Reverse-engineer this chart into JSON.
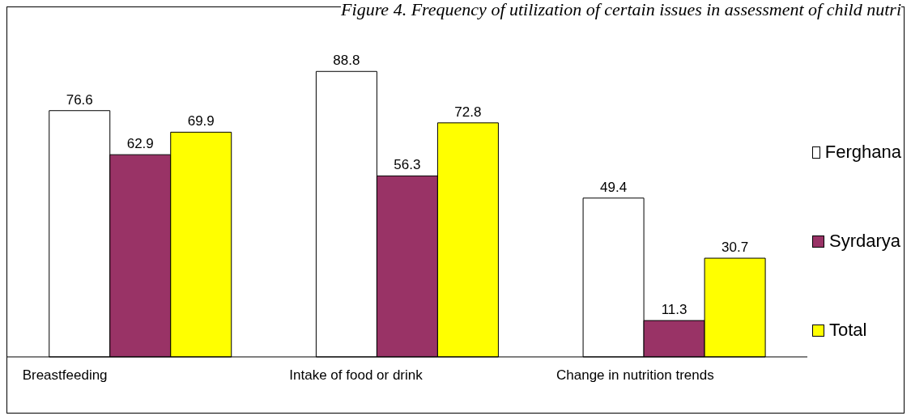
{
  "chart_data": {
    "type": "bar",
    "title": "Figure 4. Frequency of utilization of certain issues in assessment of child nutri",
    "categories": [
      "Breastfeeding",
      "Intake of food or drink",
      "Change in nutrition trends"
    ],
    "series": [
      {
        "name": "Ferghana",
        "color": "#ffffff",
        "values": [
          76.6,
          88.8,
          49.4
        ]
      },
      {
        "name": "Syrdarya",
        "color": "#993366",
        "values": [
          62.9,
          56.3,
          11.3
        ]
      },
      {
        "name": "Total",
        "color": "#ffff00",
        "values": [
          69.9,
          72.8,
          30.7
        ]
      }
    ],
    "data_labels": true,
    "legend": "right",
    "grid": false
  }
}
